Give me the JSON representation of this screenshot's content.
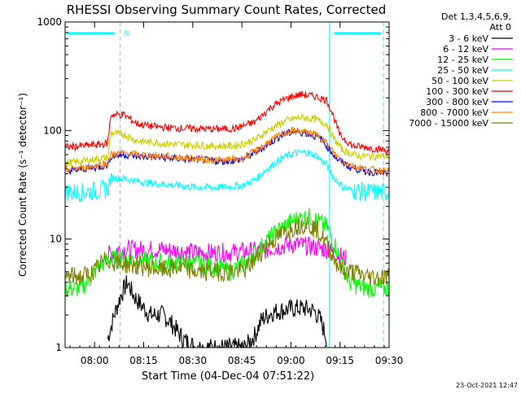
{
  "chart_data": {
    "type": "line",
    "title": "RHESSI Observing Summary Count Rates, Corrected",
    "xlabel": "Start Time (04-Dec-04 07:51:22)",
    "ylabel": "Corrected Count Rate (s⁻¹ detector⁻¹)",
    "y_scale": "log",
    "ylim": [
      1,
      1000
    ],
    "xlim_minutes_after_0751": [
      0,
      99
    ],
    "x_ticks": [
      {
        "label": "08:00",
        "t": 9
      },
      {
        "label": "08:15",
        "t": 24
      },
      {
        "label": "08:30",
        "t": 39
      },
      {
        "label": "08:45",
        "t": 54
      },
      {
        "label": "09:00",
        "t": 69
      },
      {
        "label": "09:15",
        "t": 84
      },
      {
        "label": "09:30",
        "t": 99
      }
    ],
    "y_ticks": [
      {
        "label": "1",
        "v": 1
      },
      {
        "label": "10",
        "v": 10
      },
      {
        "label": "100",
        "v": 100
      },
      {
        "label": "1000",
        "v": 1000
      }
    ],
    "legend_header": [
      "Det 1,3,4,5,6,9,",
      "Att 0"
    ],
    "legend_position": "right",
    "series": [
      {
        "name": "3 - 6 keV",
        "color": "#000000",
        "points": [
          [
            13,
            1.2
          ],
          [
            15,
            2.0
          ],
          [
            17,
            3.0
          ],
          [
            19,
            4.0
          ],
          [
            21,
            3.0
          ],
          [
            23,
            2.5
          ],
          [
            26,
            2.0
          ],
          [
            30,
            2.0
          ],
          [
            33,
            1.6
          ],
          [
            36,
            1.2
          ],
          [
            40,
            1.0
          ],
          [
            55,
            1.0
          ],
          [
            58,
            1.3
          ],
          [
            60,
            1.8
          ],
          [
            63,
            2.1
          ],
          [
            66,
            2.2
          ],
          [
            70,
            2.3
          ],
          [
            73,
            2.3
          ],
          [
            76,
            2.2
          ],
          [
            78,
            1.8
          ],
          [
            80,
            1.2
          ]
        ]
      },
      {
        "name": "6 - 12 keV",
        "color": "#ff00ff",
        "points": [
          [
            13,
            7.0
          ],
          [
            16,
            8.0
          ],
          [
            20,
            8.0
          ],
          [
            30,
            8.0
          ],
          [
            40,
            7.5
          ],
          [
            50,
            7.5
          ],
          [
            60,
            7.8
          ],
          [
            65,
            8.5
          ],
          [
            70,
            9.0
          ],
          [
            75,
            8.5
          ],
          [
            80,
            8.0
          ],
          [
            84,
            7.0
          ],
          [
            86,
            6.5
          ]
        ]
      },
      {
        "name": "12 - 25 keV",
        "color": "#00ff00",
        "points": [
          [
            0,
            3.5
          ],
          [
            5,
            3.5
          ],
          [
            8,
            4.5
          ],
          [
            10,
            5.5
          ],
          [
            13,
            6.5
          ],
          [
            16,
            6.5
          ],
          [
            20,
            6.5
          ],
          [
            30,
            6.0
          ],
          [
            40,
            6.0
          ],
          [
            46,
            5.5
          ],
          [
            50,
            5.0
          ],
          [
            55,
            6.0
          ],
          [
            60,
            8.5
          ],
          [
            65,
            12.0
          ],
          [
            70,
            15.0
          ],
          [
            75,
            16.0
          ],
          [
            80,
            13.0
          ],
          [
            83,
            8.0
          ],
          [
            85,
            5.5
          ],
          [
            87,
            4.0
          ],
          [
            92,
            3.5
          ],
          [
            99,
            3.5
          ]
        ]
      },
      {
        "name": "25 - 50 keV",
        "color": "#00ffff",
        "points": [
          [
            0,
            27
          ],
          [
            5,
            27
          ],
          [
            10,
            28
          ],
          [
            13,
            29
          ],
          [
            14,
            37
          ],
          [
            18,
            36
          ],
          [
            25,
            33
          ],
          [
            30,
            32
          ],
          [
            40,
            30
          ],
          [
            48,
            30
          ],
          [
            54,
            31
          ],
          [
            58,
            35
          ],
          [
            62,
            45
          ],
          [
            66,
            55
          ],
          [
            70,
            62
          ],
          [
            74,
            63
          ],
          [
            77,
            58
          ],
          [
            80,
            48
          ],
          [
            82,
            37
          ],
          [
            85,
            30
          ],
          [
            88,
            28
          ],
          [
            92,
            27
          ],
          [
            99,
            27
          ]
        ]
      },
      {
        "name": "50 - 100 keV",
        "color": "#cccc00",
        "points": [
          [
            0,
            50
          ],
          [
            5,
            52
          ],
          [
            10,
            55
          ],
          [
            13,
            56
          ],
          [
            14,
            95
          ],
          [
            18,
            92
          ],
          [
            22,
            80
          ],
          [
            28,
            77
          ],
          [
            35,
            74
          ],
          [
            45,
            72
          ],
          [
            52,
            72
          ],
          [
            58,
            82
          ],
          [
            63,
            105
          ],
          [
            68,
            125
          ],
          [
            72,
            132
          ],
          [
            76,
            128
          ],
          [
            80,
            115
          ],
          [
            82,
            85
          ],
          [
            85,
            65
          ],
          [
            90,
            58
          ],
          [
            99,
            58
          ]
        ]
      },
      {
        "name": "100 - 300 keV",
        "color": "#ff0000",
        "points": [
          [
            0,
            70
          ],
          [
            5,
            72
          ],
          [
            10,
            74
          ],
          [
            13,
            76
          ],
          [
            14,
            140
          ],
          [
            18,
            140
          ],
          [
            22,
            115
          ],
          [
            28,
            108
          ],
          [
            35,
            105
          ],
          [
            45,
            103
          ],
          [
            52,
            104
          ],
          [
            58,
            120
          ],
          [
            63,
            165
          ],
          [
            68,
            200
          ],
          [
            72,
            215
          ],
          [
            76,
            208
          ],
          [
            80,
            190
          ],
          [
            82,
            135
          ],
          [
            84,
            90
          ],
          [
            88,
            72
          ],
          [
            92,
            70
          ],
          [
            99,
            65
          ]
        ]
      },
      {
        "name": "300 - 800 keV",
        "color": "#0000ff",
        "points": [
          [
            0,
            42
          ],
          [
            5,
            44
          ],
          [
            10,
            46
          ],
          [
            13,
            48
          ],
          [
            14,
            58
          ],
          [
            18,
            60
          ],
          [
            22,
            58
          ],
          [
            30,
            56
          ],
          [
            40,
            54
          ],
          [
            48,
            52
          ],
          [
            54,
            54
          ],
          [
            58,
            62
          ],
          [
            62,
            75
          ],
          [
            66,
            90
          ],
          [
            70,
            98
          ],
          [
            74,
            94
          ],
          [
            78,
            85
          ],
          [
            80,
            72
          ],
          [
            83,
            55
          ],
          [
            87,
            46
          ],
          [
            92,
            42
          ],
          [
            99,
            40
          ]
        ]
      },
      {
        "name": "800 - 7000 keV",
        "color": "#ff8000",
        "points": [
          [
            0,
            44
          ],
          [
            5,
            45
          ],
          [
            10,
            48
          ],
          [
            13,
            50
          ],
          [
            14,
            60
          ],
          [
            18,
            62
          ],
          [
            22,
            60
          ],
          [
            30,
            58
          ],
          [
            40,
            55
          ],
          [
            48,
            53
          ],
          [
            54,
            55
          ],
          [
            58,
            64
          ],
          [
            62,
            78
          ],
          [
            66,
            92
          ],
          [
            70,
            100
          ],
          [
            74,
            96
          ],
          [
            78,
            88
          ],
          [
            80,
            75
          ],
          [
            83,
            58
          ],
          [
            87,
            48
          ],
          [
            92,
            44
          ],
          [
            99,
            42
          ]
        ]
      },
      {
        "name": "7000 - 15000 keV",
        "color": "#808000",
        "points": [
          [
            0,
            4.5
          ],
          [
            5,
            4.5
          ],
          [
            9,
            5.0
          ],
          [
            11,
            6.0
          ],
          [
            13,
            6.5
          ],
          [
            16,
            6.0
          ],
          [
            20,
            5.8
          ],
          [
            25,
            5.5
          ],
          [
            30,
            5.2
          ],
          [
            35,
            5.5
          ],
          [
            40,
            5.0
          ],
          [
            45,
            5.0
          ],
          [
            50,
            5.0
          ],
          [
            55,
            5.2
          ],
          [
            58,
            6.5
          ],
          [
            62,
            9.0
          ],
          [
            66,
            11.0
          ],
          [
            70,
            13.0
          ],
          [
            74,
            14.0
          ],
          [
            77,
            12.0
          ],
          [
            80,
            9.0
          ],
          [
            83,
            6.0
          ],
          [
            85,
            5.0
          ],
          [
            88,
            5.0
          ],
          [
            92,
            4.5
          ],
          [
            99,
            4.5
          ]
        ]
      }
    ],
    "annotations": {
      "n_label": "N",
      "solid_markers_t": [
        0,
        80.8
      ],
      "dashed_markers_t": [
        16.8,
        97.3
      ],
      "attenuator_bars": [
        [
          0,
          15.1
        ],
        [
          81.7,
          96.5
        ]
      ]
    },
    "grid": false,
    "timestamp": "23-Oct-2021 12:47"
  }
}
